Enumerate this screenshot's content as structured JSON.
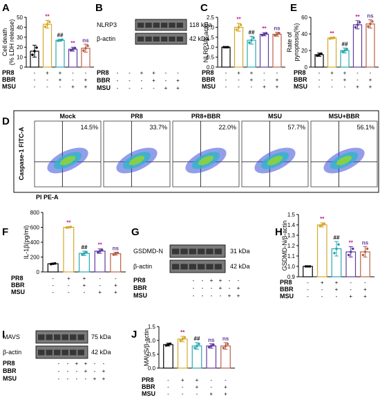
{
  "panels": {
    "A": {
      "letter": "A",
      "ylabel": "Cell death\n(% LDH release)",
      "yticks": [
        "0",
        "10",
        "20",
        "30",
        "40",
        "50"
      ],
      "ylim": [
        0,
        50
      ]
    },
    "B": {
      "letter": "B",
      "bands": [
        {
          "name": "NLRP3",
          "kda": "118 kDa"
        },
        {
          "name": "β-actin",
          "kda": "42 kDa"
        }
      ]
    },
    "C": {
      "letter": "C",
      "ylabel": "NLRP3/β-actin",
      "yticks": [
        "0.0",
        "0.5",
        "1.0",
        "1.5",
        "2.0",
        "2.5"
      ],
      "ylim": [
        0,
        2.5
      ]
    },
    "E": {
      "letter": "E",
      "ylabel": "Rate of\npyroptosis(%)",
      "yticks": [
        "0",
        "20",
        "40",
        "60"
      ],
      "ylim": [
        0,
        60
      ]
    },
    "D": {
      "letter": "D",
      "ylabel": "Caspase-1 FITC-A",
      "xlabel": "PI PE-A",
      "plots": [
        {
          "title": "Mock",
          "pct": "14.5%"
        },
        {
          "title": "PR8",
          "pct": "33.7%"
        },
        {
          "title": "PR8+BBR",
          "pct": "22.0%"
        },
        {
          "title": "MSU",
          "pct": "57.7%"
        },
        {
          "title": "MSU+BBR",
          "pct": "56.1%"
        }
      ]
    },
    "F": {
      "letter": "F",
      "ylabel": "IL-1β(pg/ml)",
      "yticks": [
        "0",
        "200",
        "400",
        "600",
        "800"
      ],
      "ylim": [
        0,
        800
      ]
    },
    "G": {
      "letter": "G",
      "bands": [
        {
          "name": "GSDMD-N",
          "kda": "31 kDa"
        },
        {
          "name": "β-actin",
          "kda": "42 kDa"
        }
      ]
    },
    "H": {
      "letter": "H",
      "ylabel": "GSDMD-N/β-actin",
      "yticks": [
        "0.9",
        "1.0",
        "1.1",
        "1.2",
        "1.3",
        "1.4",
        "1.5"
      ],
      "ylim": [
        0.9,
        1.5
      ]
    },
    "I": {
      "letter": "I",
      "bands": [
        {
          "name": "MAVS",
          "kda": "75 kDa"
        },
        {
          "name": "β-actin",
          "kda": "42 kDa"
        }
      ]
    },
    "J": {
      "letter": "J",
      "ylabel": "MAVS/β-actin",
      "yticks": [
        "0.0",
        "0.5",
        "1.0",
        "1.5"
      ],
      "ylim": [
        0,
        1.5
      ]
    }
  },
  "conditions": {
    "labels": [
      "PR8",
      "BBR",
      "MSU"
    ],
    "bar_signs": [
      [
        "-",
        "+",
        "+",
        "-",
        "-"
      ],
      [
        "-",
        "-",
        "+",
        "-",
        "+"
      ],
      [
        "-",
        "-",
        "-",
        "+",
        "+"
      ]
    ],
    "blot_signs": [
      [
        "-",
        "-",
        "+",
        "+",
        "-",
        "-"
      ],
      [
        "-",
        "-",
        "-",
        "+",
        "-",
        "+"
      ],
      [
        "-",
        "-",
        "-",
        "-",
        "+",
        "+"
      ]
    ]
  },
  "colors": [
    "#000000",
    "#d4a82a",
    "#29a8b0",
    "#5e3a9e",
    "#b86048"
  ],
  "chart_data": [
    {
      "type": "bar",
      "panel": "A",
      "categories": [
        "Mock",
        "PR8",
        "PR8+BBR",
        "MSU",
        "MSU+BBR"
      ],
      "values": [
        16,
        43,
        27,
        18,
        19
      ],
      "errors": [
        6,
        4,
        1,
        2,
        4
      ],
      "significance": [
        "",
        "**",
        "##",
        "**",
        "ns"
      ],
      "ylim": [
        0,
        50
      ]
    },
    {
      "type": "bar",
      "panel": "C",
      "categories": [
        "Mock",
        "PR8",
        "PR8+BBR",
        "MSU",
        "MSU+BBR"
      ],
      "values": [
        1.0,
        2.0,
        1.35,
        1.65,
        1.65
      ],
      "errors": [
        0,
        0.2,
        0.2,
        0.08,
        0.1
      ],
      "significance": [
        "",
        "**",
        "##",
        "**",
        "ns"
      ],
      "ylim": [
        0,
        2.5
      ]
    },
    {
      "type": "bar",
      "panel": "E",
      "categories": [
        "Mock",
        "PR8",
        "PR8+BBR",
        "MSU",
        "MSU+BBR"
      ],
      "values": [
        15,
        35,
        20,
        51,
        52
      ],
      "errors": [
        2,
        1,
        3,
        5,
        5
      ],
      "significance": [
        "",
        "**",
        "##",
        "**",
        "ns"
      ],
      "ylim": [
        0,
        60
      ]
    },
    {
      "type": "bar",
      "panel": "F",
      "categories": [
        "Mock",
        "PR8",
        "PR8+BBR",
        "MSU",
        "MSU+BBR"
      ],
      "values": [
        110,
        600,
        250,
        280,
        245
      ],
      "errors": [
        8,
        8,
        30,
        30,
        20
      ],
      "significance": [
        "",
        "**",
        "##",
        "**",
        "ns"
      ],
      "ylim": [
        0,
        800
      ]
    },
    {
      "type": "bar",
      "panel": "H",
      "categories": [
        "Mock",
        "PR8",
        "PR8+BBR",
        "MSU",
        "MSU+BBR"
      ],
      "values": [
        1.0,
        1.4,
        1.17,
        1.14,
        1.14
      ],
      "errors": [
        0,
        0.02,
        0.07,
        0.05,
        0.05
      ],
      "significance": [
        "",
        "**",
        "##",
        "**",
        "ns"
      ],
      "ylim": [
        0.9,
        1.5
      ]
    },
    {
      "type": "bar",
      "panel": "J",
      "categories": [
        "Mock",
        "PR8",
        "PR8+BBR",
        "MSU",
        "MSU+BBR"
      ],
      "values": [
        0.85,
        1.05,
        0.8,
        0.8,
        0.8
      ],
      "errors": [
        0.05,
        0.1,
        0.12,
        0.08,
        0.12
      ],
      "significance": [
        "",
        "**",
        "##",
        "ns",
        "ns"
      ],
      "ylim": [
        0,
        1.5
      ]
    }
  ]
}
